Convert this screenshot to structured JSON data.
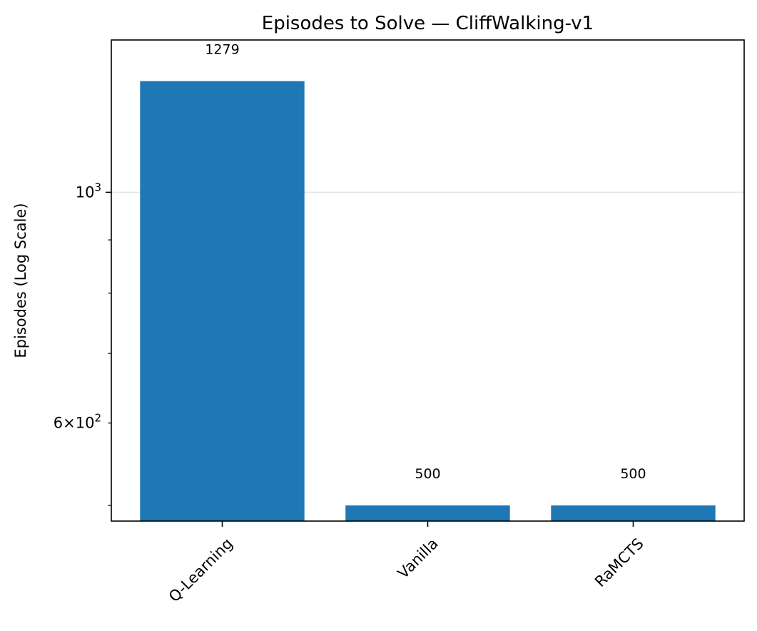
{
  "chart_data": {
    "type": "bar",
    "title": "Episodes to Solve — CliffWalking-v1",
    "xlabel": "",
    "ylabel": "Episodes (Log Scale)",
    "categories": [
      "Q-Learning",
      "Vanilla",
      "RaMCTS"
    ],
    "values": [
      1279,
      500,
      500
    ],
    "data_labels": [
      "1279",
      "500",
      "500"
    ],
    "yscale": "log",
    "ylim": [
      483,
      1401
    ],
    "y_major_tick": {
      "value": 1000,
      "label_base": "10",
      "label_exp": "3"
    },
    "y_labeled_minor_tick": {
      "value": 600,
      "label_coef": "6",
      "label_times": "×",
      "label_base": "10",
      "label_exp": "2"
    },
    "y_minor_ticks": [
      500,
      600,
      700,
      800,
      900
    ],
    "grid": true,
    "legend": "none",
    "colors": {
      "bar": "#1f77b4",
      "grid": "#e5e5e5",
      "axis": "#000000"
    }
  }
}
